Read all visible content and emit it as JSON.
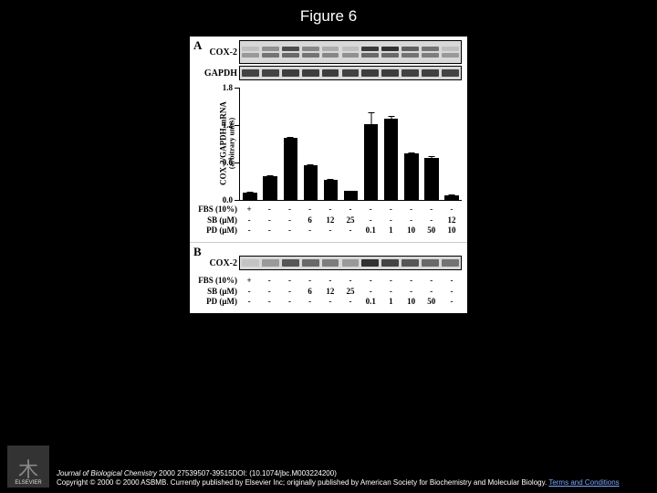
{
  "title": "Figure 6",
  "figure": {
    "panelA": {
      "label": "A",
      "gels": [
        {
          "label": "COX-2",
          "double": true,
          "intensities_top": [
            0.1,
            0.35,
            0.7,
            0.4,
            0.2,
            0.1,
            0.8,
            0.85,
            0.6,
            0.5,
            0.1
          ],
          "intensities_bottom": [
            0.3,
            0.5,
            0.55,
            0.5,
            0.4,
            0.35,
            0.55,
            0.55,
            0.5,
            0.45,
            0.3
          ]
        },
        {
          "label": "GAPDH",
          "double": false,
          "intensities": [
            0.75,
            0.75,
            0.78,
            0.78,
            0.78,
            0.76,
            0.78,
            0.78,
            0.76,
            0.76,
            0.75
          ]
        }
      ],
      "chart": {
        "ylabel": "COX-2/GAPDH mRNA",
        "ysub": "(arbitrary units)",
        "ylim": [
          0,
          1.8
        ],
        "yticks": [
          0.0,
          0.6,
          1.2,
          1.8
        ],
        "values": [
          0.12,
          0.38,
          1.0,
          0.55,
          0.32,
          0.14,
          1.22,
          1.3,
          0.75,
          0.68,
          0.08
        ],
        "errors": [
          0.03,
          0.02,
          0.02,
          0.06,
          0.08,
          0.03,
          0.28,
          0.06,
          0.04,
          0.05,
          0.02
        ],
        "bar_color": "#000000",
        "bg_color": "#ffffff"
      },
      "treatments": {
        "rows": [
          {
            "label": "FBS (10%)",
            "cells": [
              "+",
              "-",
              "-",
              "-",
              "-",
              "-",
              "-",
              "-",
              "-",
              "-",
              "-"
            ]
          },
          {
            "label": "SB (μM)",
            "cells": [
              "-",
              "-",
              "-",
              "6",
              "12",
              "25",
              "-",
              "-",
              "-",
              "-",
              "12"
            ]
          },
          {
            "label": "PD (μM)",
            "cells": [
              "-",
              "-",
              "-",
              "-",
              "-",
              "-",
              "0.1",
              "1",
              "10",
              "50",
              "10"
            ]
          }
        ]
      }
    },
    "panelB": {
      "label": "B",
      "gel": {
        "label": "COX-2",
        "intensities": [
          0.08,
          0.3,
          0.65,
          0.55,
          0.45,
          0.3,
          0.85,
          0.75,
          0.65,
          0.55,
          0.5
        ]
      },
      "treatments": {
        "rows": [
          {
            "label": "FBS (10%)",
            "cells": [
              "+",
              "-",
              "-",
              "-",
              "-",
              "-",
              "-",
              "-",
              "-",
              "-",
              "-"
            ]
          },
          {
            "label": "SB (μM)",
            "cells": [
              "-",
              "-",
              "-",
              "6",
              "12",
              "25",
              "-",
              "-",
              "-",
              "-",
              "-"
            ]
          },
          {
            "label": "PD (μM)",
            "cells": [
              "-",
              "-",
              "-",
              "-",
              "-",
              "-",
              "0.1",
              "1",
              "10",
              "50",
              "-"
            ]
          }
        ]
      }
    }
  },
  "footer": {
    "logo_text": "ELSEVIER",
    "line1_ital": "Journal of Biological Chemistry",
    "line1_rest": " 2000 27539507-39515DOI: (10.1074/jbc.M003224200)",
    "line2": "Copyright © 2000 © 2000 ASBMB. Currently published by Elsevier Inc; originally published by American Society for Biochemistry and Molecular Biology. ",
    "terms": "Terms and Conditions"
  }
}
